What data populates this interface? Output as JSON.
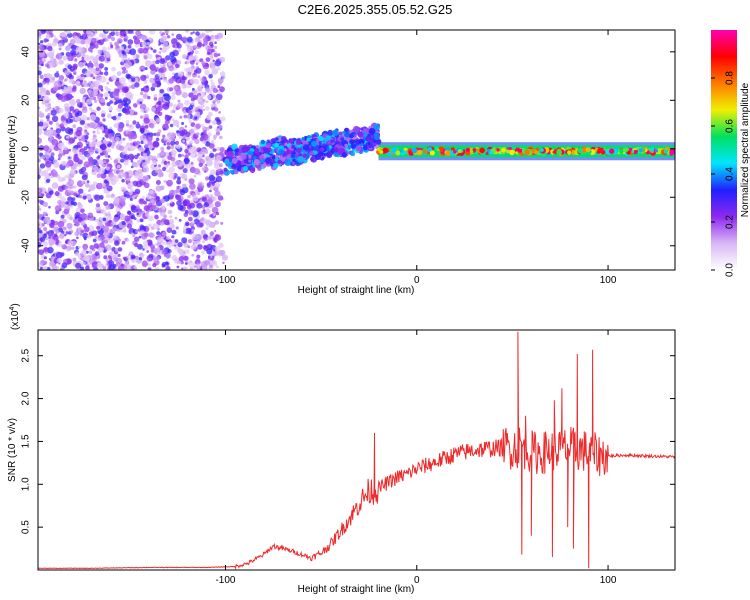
{
  "title": "C2E6.2025.355.05.52.G25",
  "colors": {
    "snr_line": "#ee2a2a",
    "scatter_noise": "#8a2be2",
    "cbar_stops": [
      "#ffffff",
      "#d9b8f5",
      "#8e28f0",
      "#2020ff",
      "#00e5ff",
      "#00e060",
      "#f0f000",
      "#ff7a00",
      "#ff0000",
      "#ff00b0"
    ]
  },
  "chart_data": [
    {
      "id": "spectrogram",
      "type": "heatmap",
      "xlabel": "Height of straight line (km)",
      "ylabel": "Frequency (Hz)",
      "xlim": [
        -198,
        135
      ],
      "ylim": [
        -50,
        49
      ],
      "x_ticks": [
        -100,
        0,
        100
      ],
      "y_ticks": [
        -40,
        -20,
        0,
        20,
        40
      ],
      "colorbar": {
        "label": "Normalized spectral amplitude",
        "range": [
          0,
          1
        ],
        "ticks": [
          0.0,
          0.2,
          0.4,
          0.6,
          0.8
        ]
      },
      "regions": [
        {
          "name": "broadband noise",
          "x_range": [
            -198,
            -100
          ],
          "y_range": [
            -50,
            49
          ],
          "amplitude": [
            0.0,
            0.25
          ]
        },
        {
          "name": "emerging tone",
          "x_range": [
            -100,
            -20
          ],
          "center_start_hz": -5,
          "center_end_hz": 5,
          "amplitude": [
            0.15,
            0.45
          ]
        },
        {
          "name": "stable tone",
          "x_range": [
            -20,
            135
          ],
          "center_hz": -1,
          "amplitude": [
            0.4,
            1.0
          ]
        }
      ]
    },
    {
      "id": "snr",
      "type": "line",
      "title_y_scale": "(x10^4)",
      "y_scale_label": "(x10",
      "y_scale_exp": "4",
      "xlabel": "Height of straight line (km)",
      "ylabel": "SNR (10 * v/v)",
      "xlim": [
        -198,
        135
      ],
      "ylim": [
        0.0,
        2.8
      ],
      "x_ticks": [
        -100,
        0,
        100
      ],
      "y_ticks": [
        0.5,
        1.0,
        1.5,
        2.0,
        2.5
      ],
      "y_tick_labels": [
        "0.5",
        "1.0",
        "1.5",
        "2.0",
        "2.5"
      ],
      "series": [
        {
          "name": "SNR",
          "x": [
            -198,
            -170,
            -140,
            -110,
            -95,
            -88,
            -80,
            -75,
            -70,
            -65,
            -60,
            -55,
            -50,
            -45,
            -40,
            -35,
            -30,
            -25,
            -20,
            -15,
            -10,
            -5,
            0,
            10,
            20,
            30,
            40,
            50,
            55,
            60,
            65,
            70,
            75,
            80,
            85,
            90,
            95,
            100,
            110,
            120,
            135
          ],
          "y": [
            0.02,
            0.02,
            0.03,
            0.03,
            0.04,
            0.08,
            0.18,
            0.28,
            0.25,
            0.22,
            0.18,
            0.14,
            0.2,
            0.3,
            0.45,
            0.6,
            0.78,
            0.92,
            0.95,
            1.02,
            1.08,
            1.12,
            1.18,
            1.26,
            1.35,
            1.4,
            1.42,
            1.43,
            1.45,
            1.38,
            1.36,
            1.4,
            1.42,
            1.42,
            1.4,
            1.38,
            1.34,
            1.33,
            1.34,
            1.33,
            1.32
          ],
          "spikes": [
            {
              "x": -22,
              "y": 1.6
            },
            {
              "x": 53,
              "y": 2.78
            },
            {
              "x": 55,
              "y": 0.18
            },
            {
              "x": 57,
              "y": 1.8
            },
            {
              "x": 60,
              "y": 0.4
            },
            {
              "x": 71,
              "y": 0.15
            },
            {
              "x": 72,
              "y": 1.98
            },
            {
              "x": 76,
              "y": 2.12
            },
            {
              "x": 79,
              "y": 0.5
            },
            {
              "x": 82,
              "y": 0.25
            },
            {
              "x": 84,
              "y": 2.52
            },
            {
              "x": 90,
              "y": 0.02
            },
            {
              "x": 92,
              "y": 2.57
            },
            {
              "x": 95,
              "y": 1.2
            }
          ]
        }
      ]
    }
  ]
}
